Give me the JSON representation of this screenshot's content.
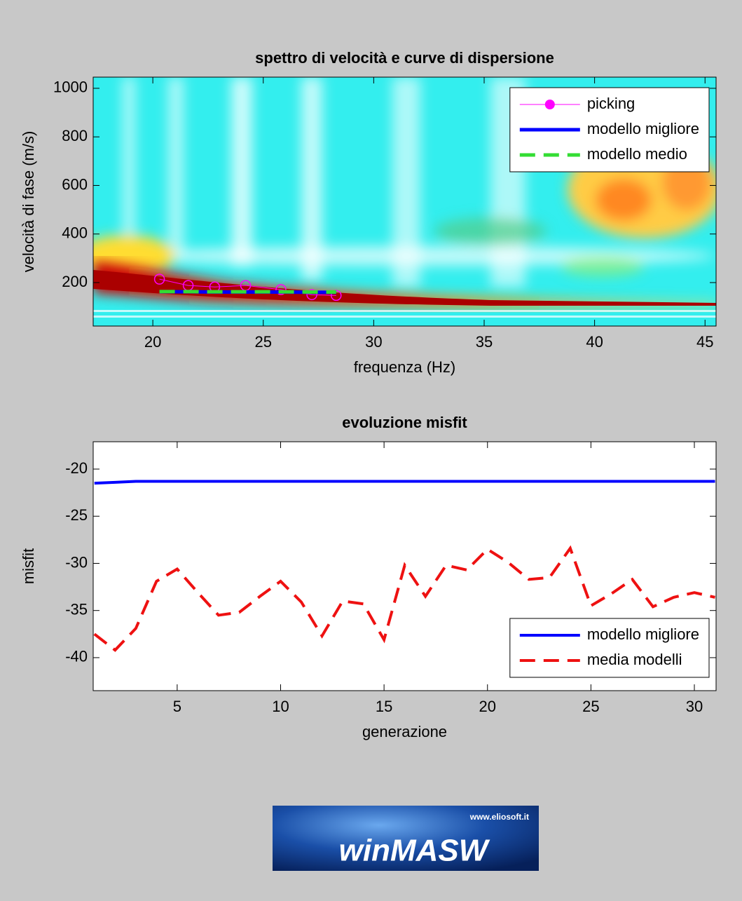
{
  "chart_data": [
    {
      "type": "line",
      "title": "spettro di velocità e curve di dispersione",
      "xlabel": "frequenza (Hz)",
      "ylabel": "velocità di fase (m/s)",
      "x": [
        20.3,
        21.6,
        22.8,
        24.2,
        25.8,
        27.2,
        28.3
      ],
      "series": [
        {
          "name": "picking",
          "color": "#ff00ff",
          "style": "solid",
          "width": 1,
          "marker": "circle",
          "values": [
            214,
            188,
            182,
            188,
            171,
            150,
            147
          ]
        },
        {
          "name": "modello migliore",
          "color": "#0000ff",
          "style": "solid",
          "width": 5,
          "marker": "none",
          "values": [
            162,
            162,
            161,
            161,
            161,
            160,
            160
          ]
        },
        {
          "name": "modello medio",
          "color": "#33dd33",
          "style": "dashed",
          "width": 5,
          "marker": "none",
          "values": [
            163,
            163,
            162,
            162,
            162,
            161,
            161
          ]
        }
      ],
      "xlim": [
        17.3,
        45.5
      ],
      "xticks": [
        20,
        25,
        30,
        35,
        40,
        45
      ],
      "ylim": [
        21,
        1046
      ],
      "yticks": [
        200,
        400,
        600,
        800,
        1000
      ],
      "legend": "upper right",
      "background": "heatmap"
    },
    {
      "type": "line",
      "title": "evoluzione misfit",
      "xlabel": "generazione",
      "ylabel": "misfit",
      "x": [
        1,
        2,
        3,
        4,
        5,
        6,
        7,
        8,
        9,
        10,
        11,
        12,
        13,
        14,
        15,
        16,
        17,
        18,
        19,
        20,
        21,
        22,
        23,
        24,
        25,
        26,
        27,
        28,
        29,
        30,
        31
      ],
      "series": [
        {
          "name": "modello migliore",
          "color": "#0000ff",
          "style": "solid",
          "width": 4,
          "marker": "none",
          "values": [
            -21.5,
            -21.4,
            -21.3,
            -21.3,
            -21.3,
            -21.3,
            -21.3,
            -21.3,
            -21.3,
            -21.3,
            -21.3,
            -21.3,
            -21.3,
            -21.3,
            -21.3,
            -21.3,
            -21.3,
            -21.3,
            -21.3,
            -21.3,
            -21.3,
            -21.3,
            -21.3,
            -21.3,
            -21.3,
            -21.3,
            -21.3,
            -21.3,
            -21.3,
            -21.3,
            -21.3
          ]
        },
        {
          "name": "media modelli",
          "color": "#ee1111",
          "style": "dashed",
          "width": 4,
          "marker": "none",
          "values": [
            -37.5,
            -39.2,
            -36.9,
            -31.9,
            -30.6,
            -33.1,
            -35.5,
            -35.2,
            -33.5,
            -31.9,
            -34.1,
            -37.7,
            -34.0,
            -34.3,
            -38.1,
            -30.2,
            -33.5,
            -30.2,
            -30.7,
            -28.5,
            -29.9,
            -31.7,
            -31.5,
            -28.4,
            -34.5,
            -33.2,
            -31.7,
            -34.6,
            -33.6,
            -33.1,
            -33.6
          ]
        }
      ],
      "xlim": [
        0.94,
        31.05
      ],
      "xticks": [
        5,
        10,
        15,
        20,
        25,
        30
      ],
      "ylim": [
        -43.5,
        -17.1
      ],
      "yticks": [
        -40,
        -35,
        -30,
        -25,
        -20
      ],
      "legend": "lower right",
      "background": "white"
    }
  ],
  "logo": {
    "url": "www.eliosoft.it",
    "name": "winMASW"
  }
}
